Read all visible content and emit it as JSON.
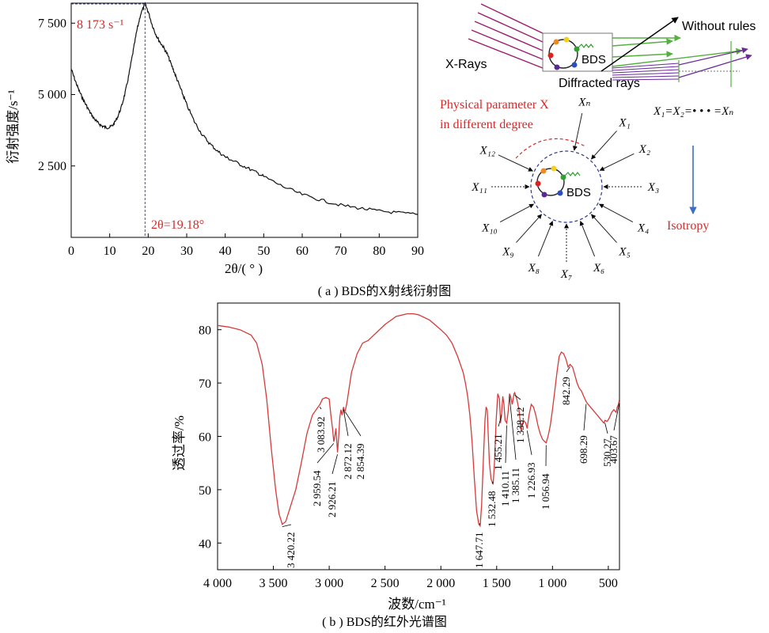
{
  "figure": {
    "caption_a": "( a ) BDS的X射线衍射图",
    "caption_b": "( b ) BDS的红外光谱图"
  },
  "chart_data": [
    {
      "type": "line",
      "xlabel": "2θ/( ° )",
      "ylabel": "衍射强度/s⁻¹",
      "xlim": [
        0,
        90
      ],
      "ylim": [
        0,
        8200
      ],
      "x_ticks": [
        0,
        10,
        20,
        30,
        40,
        50,
        60,
        70,
        80,
        90
      ],
      "y_ticks": [
        2500,
        5000,
        7500
      ],
      "y_tick_labels": [
        "2 500",
        "5 000",
        "7 500"
      ],
      "peak_label": "8 173 s⁻¹",
      "peak_x_label": "2θ=19.18°",
      "peak": {
        "x": 19.18,
        "y": 8173
      },
      "series": [
        {
          "x": [
            0,
            1,
            2,
            3,
            4,
            5,
            6,
            7,
            8,
            9,
            10,
            11,
            12,
            13,
            14,
            15,
            16,
            17,
            18,
            19.18,
            20,
            21,
            22,
            23,
            24,
            25,
            26,
            27,
            28,
            29,
            30,
            32,
            34,
            36,
            38,
            40,
            42,
            45,
            48,
            50,
            55,
            60,
            65,
            70,
            75,
            80,
            85,
            90
          ],
          "y": [
            5900,
            5500,
            5150,
            4850,
            4600,
            4350,
            4150,
            4000,
            3900,
            3850,
            3850,
            3950,
            4200,
            4550,
            5050,
            5700,
            6450,
            7200,
            7800,
            8173,
            7900,
            7450,
            7100,
            6850,
            6650,
            6400,
            6050,
            5700,
            5350,
            5000,
            4650,
            4050,
            3600,
            3280,
            3020,
            2820,
            2680,
            2480,
            2280,
            2130,
            1780,
            1500,
            1300,
            1130,
            1020,
            920,
            860,
            800
          ]
        }
      ]
    },
    {
      "type": "line",
      "xlabel": "波数/cm⁻¹",
      "ylabel": "透过率/%",
      "xlim": [
        4000,
        400
      ],
      "ylim": [
        35,
        85
      ],
      "x_ticks": [
        4000,
        3500,
        3000,
        2500,
        2000,
        1500,
        1000,
        500
      ],
      "x_tick_labels": [
        "4 000",
        "3 500",
        "3 000",
        "2 500",
        "2 000",
        "1 500",
        "1 000",
        "500"
      ],
      "y_ticks": [
        40,
        50,
        60,
        70,
        80
      ],
      "series": [
        {
          "x": [
            4000,
            3900,
            3800,
            3700,
            3650,
            3600,
            3560,
            3520,
            3480,
            3450,
            3420,
            3390,
            3360,
            3300,
            3250,
            3200,
            3150,
            3100,
            3083,
            3060,
            3030,
            3000,
            2985,
            2970,
            2959,
            2950,
            2940,
            2926,
            2915,
            2905,
            2895,
            2885,
            2872,
            2862,
            2854,
            2840,
            2800,
            2750,
            2700,
            2650,
            2600,
            2500,
            2400,
            2300,
            2250,
            2200,
            2100,
            2000,
            1950,
            1900,
            1850,
            1800,
            1780,
            1760,
            1740,
            1720,
            1700,
            1680,
            1660,
            1648,
            1635,
            1620,
            1605,
            1595,
            1585,
            1575,
            1565,
            1550,
            1532,
            1520,
            1505,
            1490,
            1475,
            1465,
            1455,
            1445,
            1435,
            1425,
            1410,
            1395,
            1385,
            1375,
            1360,
            1345,
            1338,
            1320,
            1300,
            1280,
            1260,
            1240,
            1227,
            1210,
            1190,
            1170,
            1150,
            1130,
            1110,
            1090,
            1070,
            1057,
            1040,
            1020,
            1000,
            980,
            960,
            940,
            920,
            900,
            880,
            860,
            842,
            820,
            800,
            780,
            760,
            740,
            720,
            698,
            680,
            660,
            640,
            620,
            600,
            580,
            560,
            540,
            530,
            510,
            490,
            470,
            450,
            430,
            420,
            410,
            404,
            400
          ],
          "y": [
            80.8,
            80.5,
            80.0,
            79.0,
            77.5,
            73.5,
            67.0,
            58.0,
            50.0,
            45.5,
            43.5,
            44.0,
            46.0,
            50.0,
            55.0,
            60.5,
            64.0,
            65.5,
            66.0,
            67.0,
            67.3,
            67.0,
            64.0,
            61.5,
            59.0,
            60.0,
            61.5,
            57.0,
            60.0,
            63.5,
            65.0,
            64.0,
            65.5,
            64.5,
            65.0,
            66.5,
            72.0,
            75.5,
            77.5,
            78.0,
            79.0,
            81.0,
            82.5,
            83.0,
            83.0,
            82.8,
            81.8,
            80.0,
            79.0,
            77.5,
            75.0,
            72.0,
            70.0,
            67.5,
            64.0,
            59.0,
            52.0,
            46.0,
            43.5,
            43.2,
            47.0,
            55.0,
            63.0,
            65.5,
            65.0,
            60.0,
            55.0,
            52.0,
            51.0,
            55.0,
            63.0,
            68.0,
            67.0,
            62.5,
            64.5,
            67.5,
            66.0,
            63.0,
            62.5,
            65.0,
            68.0,
            67.5,
            66.0,
            68.0,
            68.2,
            67.0,
            65.0,
            61.0,
            63.0,
            62.5,
            61.5,
            64.0,
            66.0,
            65.5,
            64.0,
            62.0,
            60.5,
            59.5,
            59.0,
            58.8,
            60.0,
            62.0,
            65.0,
            68.5,
            72.0,
            75.0,
            75.8,
            75.5,
            74.5,
            73.0,
            73.5,
            73.0,
            71.5,
            70.0,
            69.0,
            68.5,
            67.5,
            66.5,
            66.0,
            65.5,
            65.0,
            64.5,
            64.0,
            63.5,
            63.0,
            62.5,
            63.0,
            62.8,
            63.5,
            64.5,
            65.0,
            64.5,
            65.5,
            66.0,
            66.5,
            66.3
          ]
        }
      ],
      "peak_labels": [
        {
          "wavenumber": 3420.22,
          "text": "3 420.22"
        },
        {
          "wavenumber": 3083.92,
          "text": "3 083.92"
        },
        {
          "wavenumber": 2959.54,
          "text": "2 959.54"
        },
        {
          "wavenumber": 2926.21,
          "text": "2 926.21"
        },
        {
          "wavenumber": 2872.12,
          "text": "2 872.12"
        },
        {
          "wavenumber": 2854.39,
          "text": "2 854.39"
        },
        {
          "wavenumber": 1647.71,
          "text": "1 647.71"
        },
        {
          "wavenumber": 1532.48,
          "text": "1 532.48"
        },
        {
          "wavenumber": 1455.21,
          "text": "1 455.21"
        },
        {
          "wavenumber": 1410.11,
          "text": "1 410.11"
        },
        {
          "wavenumber": 1385.11,
          "text": "1 385.11"
        },
        {
          "wavenumber": 1338.12,
          "text": "1 338.12"
        },
        {
          "wavenumber": 1226.93,
          "text": "1 226.93"
        },
        {
          "wavenumber": 1056.94,
          "text": "1 056.94"
        },
        {
          "wavenumber": 842.29,
          "text": "842.29"
        },
        {
          "wavenumber": 698.29,
          "text": "698.29"
        },
        {
          "wavenumber": 530.27,
          "text": "530.27"
        },
        {
          "wavenumber": 403.67,
          "text": "403.67"
        }
      ]
    }
  ],
  "diagram": {
    "xrays_label": "X-Rays",
    "bds_label": "BDS",
    "bds_label_2": "BDS",
    "diffracted_label": "Diffracted rays",
    "without_rules_label": "Without rules",
    "equation": "X₁=X₂=• • • =Xₙ",
    "parameter_line1": "Physical parameter X",
    "parameter_line2": "in different degree",
    "isotropy_label": "Isotropy",
    "x_labels": [
      {
        "text": "Xₙ"
      },
      {
        "text": "X₁"
      },
      {
        "text": "X₂"
      },
      {
        "text": "X₃"
      },
      {
        "text": "X₄"
      },
      {
        "text": "X₅"
      },
      {
        "text": "X₆"
      },
      {
        "text": "X₇"
      },
      {
        "text": "X₈"
      },
      {
        "text": "X₉"
      },
      {
        "text": "X₁₀"
      },
      {
        "text": "X₁₁"
      },
      {
        "text": "X₁₂"
      }
    ],
    "colors": {
      "xrays": "#9b1d6e",
      "green": "#55b040",
      "purple": "#6a2a9c",
      "red_text": "#d42a2a",
      "blue_arrow": "#3b6fc4",
      "curve_red": "#d63a3a"
    }
  }
}
